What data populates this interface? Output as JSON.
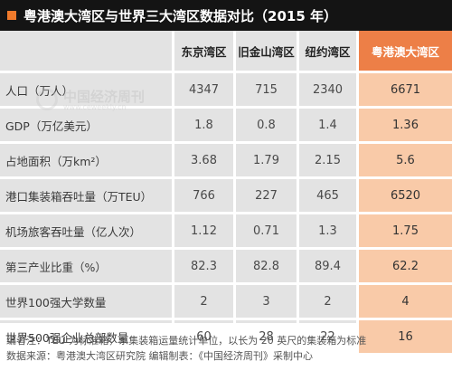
{
  "title": "粤港澳大湾区与世界三大湾区数据对比（2015 年）",
  "watermark": {
    "name": "中国经济周刊",
    "url": "www.ceweekly.cn"
  },
  "table": {
    "headers": [
      "",
      "东京湾区",
      "旧金山湾区",
      "纽约湾区",
      "粤港澳大湾区"
    ],
    "rows": [
      {
        "label": "人口（万人）",
        "values": [
          "4347",
          "715",
          "2340",
          "6671"
        ]
      },
      {
        "label": "GDP（万亿美元）",
        "values": [
          "1.8",
          "0.8",
          "1.4",
          "1.36"
        ]
      },
      {
        "label": "占地面积（万km²）",
        "values": [
          "3.68",
          "1.79",
          "2.15",
          "5.6"
        ]
      },
      {
        "label": "港口集装箱吞吐量（万TEU）",
        "values": [
          "766",
          "227",
          "465",
          "6520"
        ]
      },
      {
        "label": "机场旅客吞吐量（亿人次）",
        "values": [
          "1.12",
          "0.71",
          "1.3",
          "1.75"
        ]
      },
      {
        "label": "第三产业比重（%）",
        "values": [
          "82.3",
          "82.8",
          "89.4",
          "62.2"
        ]
      },
      {
        "label": "世界100强大学数量",
        "values": [
          "2",
          "3",
          "2",
          "4"
        ]
      },
      {
        "label": "世界500强企业总部数量",
        "values": [
          "60",
          "28",
          "22",
          "16"
        ]
      }
    ]
  },
  "notes": {
    "line1": "编者注：TEU 为标准箱，系集装箱运量统计单位，以长为 20 英尺的集装箱为标准",
    "line2": "数据来源：粤港澳大湾区研究院  编辑制表：《中国经济周刊》采制中心"
  },
  "colors": {
    "highlight_header": "#ed7f47",
    "highlight_cell": "#f9caa8",
    "title_bar": "#141414"
  }
}
